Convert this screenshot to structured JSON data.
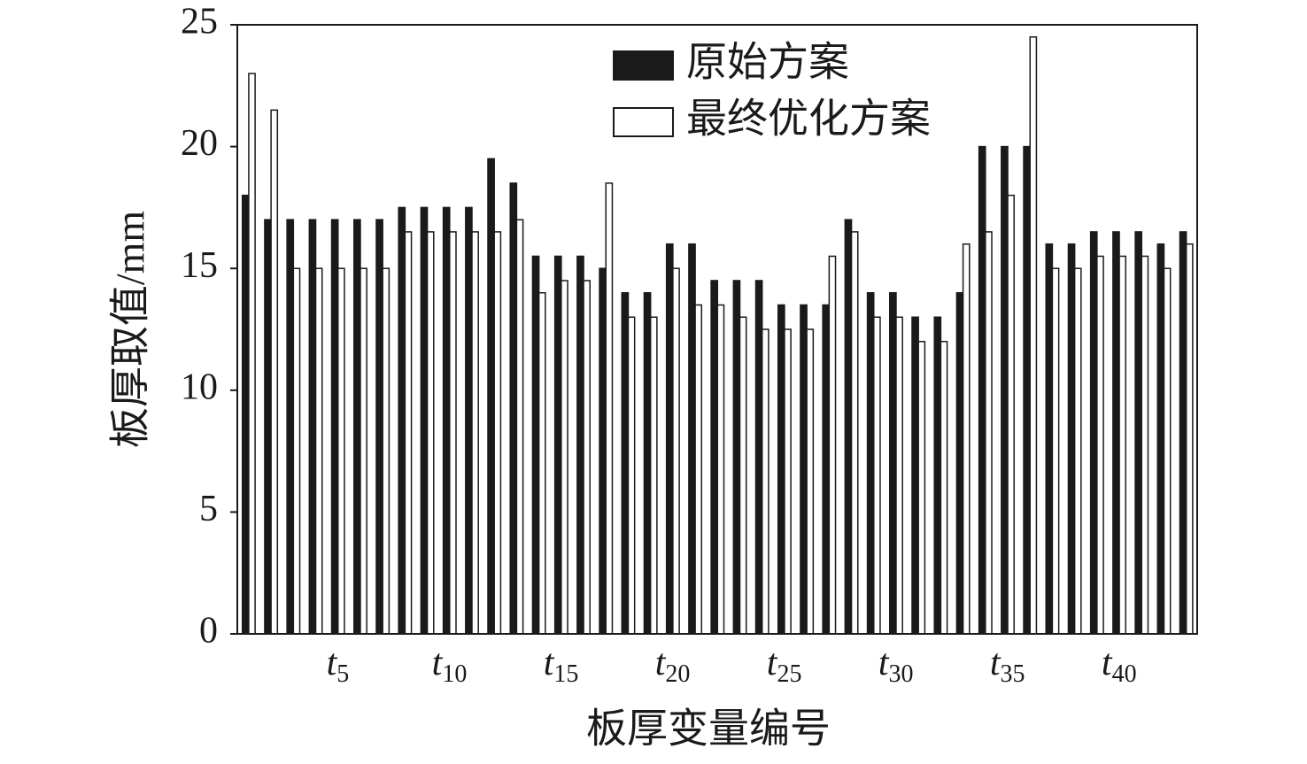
{
  "chart_data": {
    "type": "bar",
    "x_label": "板厚变量编号",
    "y_label": "板厚取值/mm",
    "categories": [
      null,
      null,
      null,
      null,
      "t5",
      null,
      null,
      null,
      null,
      "t10",
      null,
      null,
      null,
      null,
      "t15",
      null,
      null,
      null,
      null,
      "t20",
      null,
      null,
      null,
      null,
      "t25",
      null,
      null,
      null,
      null,
      "t30",
      null,
      null,
      null,
      null,
      "t35",
      null,
      null,
      null,
      null,
      "t40",
      null,
      null,
      null
    ],
    "series": [
      {
        "name": "原始方案",
        "color": "#1a1a1a",
        "values": [
          18,
          17,
          17,
          17,
          17,
          17,
          17,
          17.5,
          17.5,
          17.5,
          17.5,
          19.5,
          18.5,
          15.5,
          15.5,
          15.5,
          15,
          14,
          14,
          16,
          16,
          14.5,
          14.5,
          14.5,
          13.5,
          13.5,
          13.5,
          17,
          14,
          14,
          13,
          13,
          14,
          20,
          20,
          20,
          16,
          16,
          16.5,
          16.5,
          16.5,
          16,
          16.5
        ]
      },
      {
        "name": "最终优化方案",
        "color": "#ffffff",
        "values": [
          23,
          21.5,
          15,
          15,
          15,
          15,
          15,
          16.5,
          16.5,
          16.5,
          16.5,
          16.5,
          17,
          14,
          14.5,
          14.5,
          18.5,
          13,
          13,
          15,
          13.5,
          13.5,
          13,
          12.5,
          12.5,
          12.5,
          15.5,
          16.5,
          13,
          13,
          12,
          12,
          16,
          16.5,
          18,
          24.5,
          15,
          15,
          15.5,
          15.5,
          15.5,
          15,
          16
        ]
      }
    ],
    "ylim": [
      0,
      25
    ],
    "yticks": [
      0,
      5,
      10,
      15,
      20,
      25
    ],
    "legend": "top-right"
  }
}
